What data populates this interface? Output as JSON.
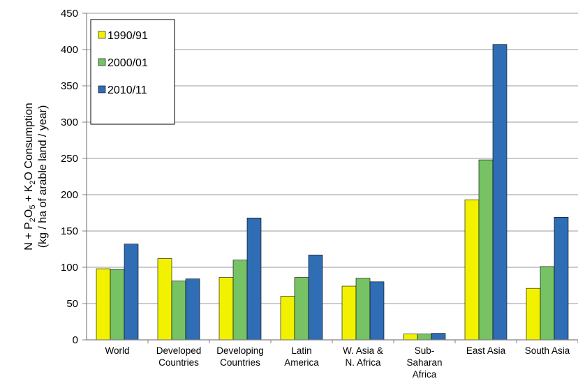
{
  "chart_data": {
    "type": "bar",
    "title": "",
    "ylabel_line1_parts": [
      "N + P",
      "2",
      "O",
      "5",
      " + K",
      "2",
      "O Consumption"
    ],
    "ylabel_line2": "(kg / ha of arable land / year)",
    "ylim": [
      0,
      450
    ],
    "yticks": [
      0,
      50,
      100,
      150,
      200,
      250,
      300,
      350,
      400,
      450
    ],
    "grid": true,
    "legend_position": "top-left",
    "categories": [
      [
        "World"
      ],
      [
        "Developed",
        "Countries"
      ],
      [
        "Developing",
        "Countries"
      ],
      [
        "Latin",
        "America"
      ],
      [
        "W. Asia &",
        "N. Africa"
      ],
      [
        "Sub-",
        "Saharan",
        "Africa"
      ],
      [
        "East Asia"
      ],
      [
        "South Asia"
      ]
    ],
    "series": [
      {
        "name": "1990/91",
        "color": "#f2f200",
        "values": [
          98,
          112,
          86,
          60,
          74,
          8,
          193,
          71
        ]
      },
      {
        "name": "2000/01",
        "color": "#76c264",
        "values": [
          97,
          81,
          110,
          86,
          85,
          8,
          248,
          101
        ]
      },
      {
        "name": "2010/11",
        "color": "#2f6db5",
        "values": [
          132,
          84,
          168,
          117,
          80,
          9,
          407,
          169
        ]
      }
    ]
  }
}
